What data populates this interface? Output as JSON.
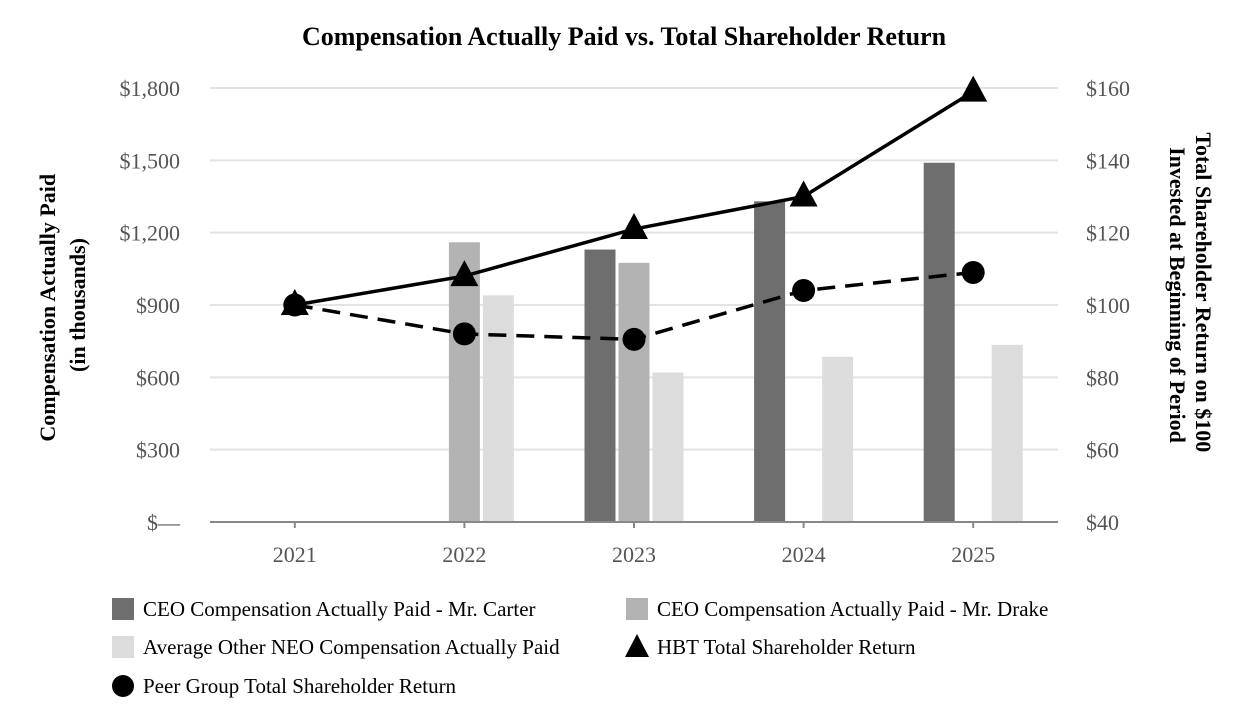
{
  "chart_data": {
    "type": "bar",
    "title": "Compensation Actually Paid vs. Total Shareholder Return",
    "ylabel_left": [
      "Compensation Actually Paid",
      "(in thousands)"
    ],
    "ylabel_right": [
      "Total Shareholder Return on $100",
      "Invested at Beginning of Period"
    ],
    "categories": [
      "2021",
      "2022",
      "2023",
      "2024",
      "2025"
    ],
    "y_left": {
      "lim": [
        0,
        1800
      ],
      "ticks": [
        0,
        300,
        600,
        900,
        1200,
        1500,
        1800
      ],
      "tick_labels": [
        "$—",
        "$300",
        "$600",
        "$900",
        "$1,200",
        "$1,500",
        "$1,800"
      ]
    },
    "y_right": {
      "lim": [
        40,
        160
      ],
      "ticks": [
        40,
        60,
        80,
        100,
        120,
        140,
        160
      ],
      "tick_labels": [
        "$40",
        "$60",
        "$80",
        "$100",
        "$120",
        "$140",
        "$160"
      ]
    },
    "grid": true,
    "legend_position": "bottom",
    "bar_series": [
      {
        "name": "CEO Compensation Actually Paid - Mr. Carter",
        "color": "#6e6e6e",
        "values": [
          null,
          null,
          1130,
          1330,
          1490
        ]
      },
      {
        "name": "CEO Compensation Actually Paid - Mr. Drake",
        "color": "#b3b3b3",
        "values": [
          null,
          1160,
          1075,
          null,
          null
        ]
      },
      {
        "name": "Average Other NEO Compensation Actually Paid",
        "color": "#dcdcdc",
        "values": [
          null,
          940,
          620,
          685,
          735
        ]
      }
    ],
    "line_series": [
      {
        "name": "HBT Total Shareholder Return",
        "color": "#000000",
        "marker": "triangle",
        "dash": "solid",
        "values": [
          100,
          108,
          121,
          130,
          159
        ]
      },
      {
        "name": "Peer Group Total Shareholder Return",
        "color": "#000000",
        "marker": "circle",
        "dash": "dashed",
        "values": [
          100,
          92,
          90.5,
          104,
          109
        ]
      }
    ]
  }
}
